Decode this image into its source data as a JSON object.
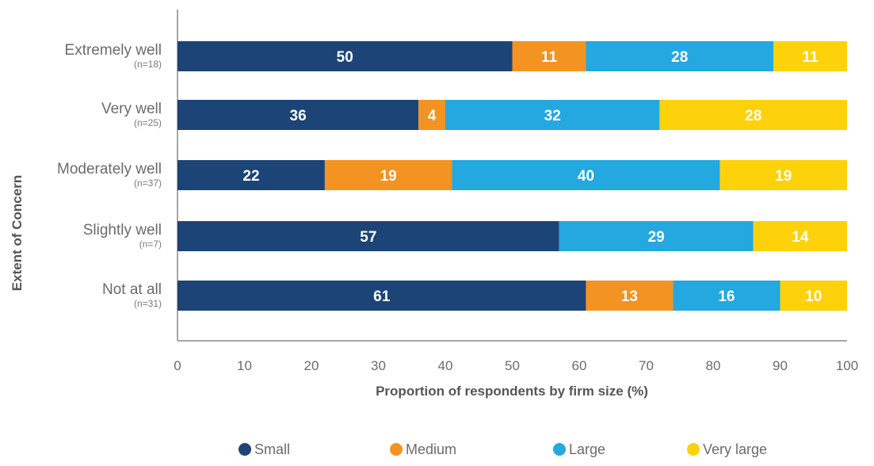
{
  "chart_data": {
    "type": "bar",
    "orientation": "horizontal",
    "stacked": true,
    "categories": [
      "Extremely well",
      "Very well",
      "Moderately well",
      "Slightly well",
      "Not at all"
    ],
    "category_notes": [
      "(n=18)",
      "(n=25)",
      "(n=37)",
      "(n=7)",
      "(n=31)"
    ],
    "series": [
      {
        "name": "Small",
        "color": "#1c4476",
        "values": [
          50,
          36,
          22,
          57,
          61
        ]
      },
      {
        "name": "Medium",
        "color": "#f39322",
        "values": [
          11,
          4,
          19,
          0,
          13
        ]
      },
      {
        "name": "Large",
        "color": "#24a8e0",
        "values": [
          28,
          32,
          40,
          29,
          16
        ]
      },
      {
        "name": "Very large",
        "color": "#fdd20a",
        "values": [
          11,
          28,
          19,
          14,
          10
        ]
      }
    ],
    "xlabel": "Proportion of respondents by firm size (%)",
    "ylabel": "Extent of Concern",
    "xlim": [
      0,
      100
    ],
    "xticks": [
      0,
      10,
      20,
      30,
      40,
      50,
      60,
      70,
      80,
      90,
      100
    ],
    "grid": false,
    "legend_position": "bottom"
  }
}
